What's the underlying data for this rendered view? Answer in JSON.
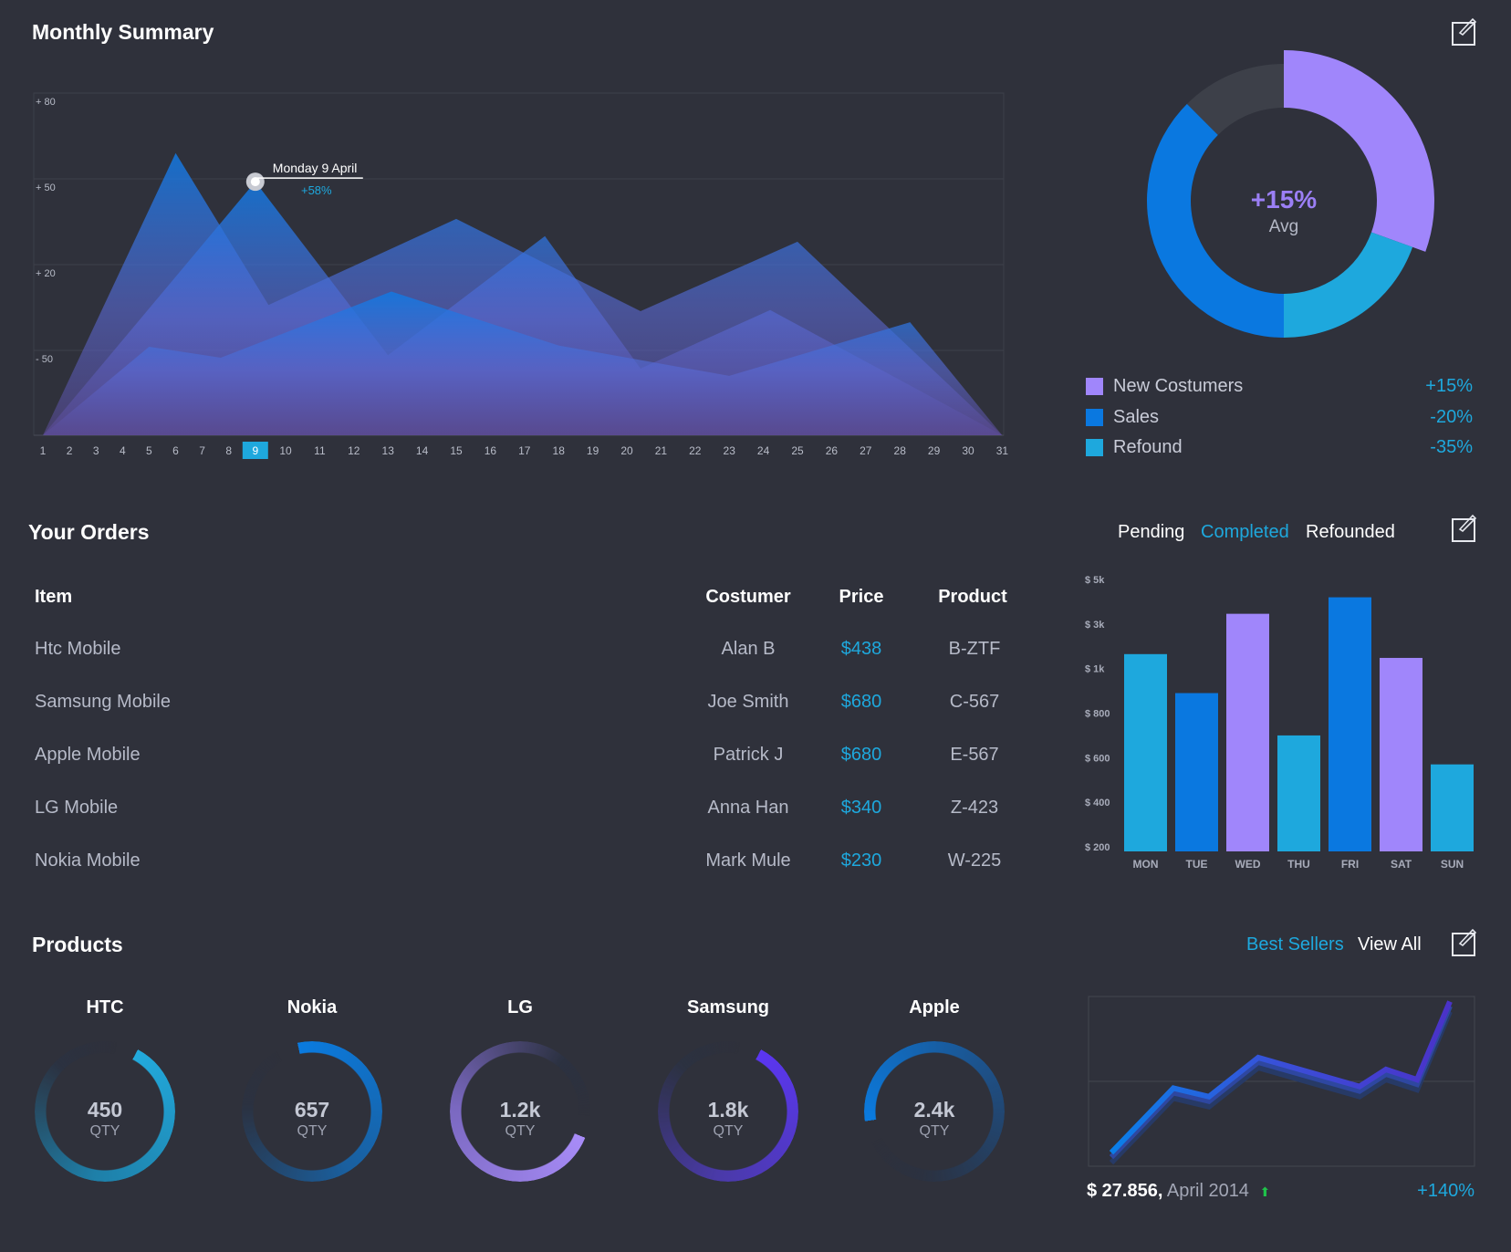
{
  "monthly": {
    "title": "Monthly Summary",
    "tooltip": {
      "label": "Monday 9 April",
      "value": "+58%"
    },
    "highlight_day": 9
  },
  "chart_data": [
    {
      "type": "area",
      "yticks": [
        {
          "label": "+ 80",
          "value": 80
        },
        {
          "label": "+ 50",
          "value": 50
        },
        {
          "label": "+ 20",
          "value": 20
        },
        {
          "label": "- 50",
          "value": -50
        }
      ],
      "ylim": [
        -120,
        80
      ],
      "grid": true,
      "x": [
        1,
        2,
        3,
        4,
        5,
        6,
        7,
        8,
        9,
        10,
        11,
        12,
        13,
        14,
        15,
        16,
        17,
        18,
        19,
        20,
        21,
        22,
        23,
        24,
        25,
        26,
        27,
        28,
        29,
        30,
        31
      ],
      "series": [
        {
          "points": [
            [
              1,
              -120
            ],
            [
              6,
              59
            ],
            [
              9.5,
              -13
            ],
            [
              15,
              36
            ],
            [
              20.4,
              -18
            ],
            [
              25,
              28
            ],
            [
              31,
              -120
            ]
          ]
        },
        {
          "points": [
            [
              1,
              -120
            ],
            [
              9,
              49
            ],
            [
              13,
              -54
            ],
            [
              17.6,
              30
            ],
            [
              20.4,
              -65
            ],
            [
              24.2,
              -17
            ],
            [
              31,
              -120
            ]
          ]
        },
        {
          "points": [
            [
              1,
              -120
            ],
            [
              5,
              -47
            ],
            [
              7.7,
              -56
            ],
            [
              13.1,
              -2
            ],
            [
              18,
              -46
            ],
            [
              23,
              -71
            ],
            [
              28.3,
              -27
            ],
            [
              31,
              -120
            ]
          ]
        }
      ]
    },
    {
      "type": "pie",
      "center_value": "+15%",
      "center_label": "Avg",
      "slices": [
        {
          "name": "New Costumers",
          "share": 0.305,
          "color": "#a086fb"
        },
        {
          "name": "Refound",
          "share": 0.195,
          "color": "#1ea8dd"
        },
        {
          "name": "Sales",
          "share": 0.375,
          "color": "#0a78e0"
        },
        {
          "name": "",
          "share": 0.125,
          "color": "#3d4049"
        }
      ]
    },
    {
      "type": "bar",
      "categories": [
        "MON",
        "TUE",
        "WED",
        "THU",
        "FRI",
        "SAT",
        "SUN"
      ],
      "values": [
        1650,
        890,
        3460,
        700,
        4200,
        1480,
        570
      ],
      "colors": [
        "#1ea8dd",
        "#0a78e0",
        "#a086fb",
        "#1ea8dd",
        "#0a78e0",
        "#a086fb",
        "#1ea8dd"
      ],
      "yticks": [
        {
          "label": "$ 200",
          "value": 200
        },
        {
          "label": "$ 400",
          "value": 400
        },
        {
          "label": "$ 600",
          "value": 600
        },
        {
          "label": "$ 800",
          "value": 800
        },
        {
          "label": "$ 1k",
          "value": 1000
        },
        {
          "label": "$ 3k",
          "value": 3000
        },
        {
          "label": "$ 5k",
          "value": 5000
        }
      ]
    },
    {
      "type": "line",
      "values": [
        8,
        46,
        41,
        64,
        47,
        57,
        51,
        97
      ],
      "ylim": [
        0,
        100
      ],
      "grid": true
    }
  ],
  "legend": [
    {
      "label": "New Costumers",
      "value": "+15%",
      "color": "#a086fb"
    },
    {
      "label": "Sales",
      "value": "-20%",
      "color": "#0a78e0"
    },
    {
      "label": "Refound",
      "value": "-35%",
      "color": "#1ea8dd"
    }
  ],
  "orders": {
    "title": "Your Orders",
    "tabs": [
      {
        "label": "Pending",
        "active": false
      },
      {
        "label": "Completed",
        "active": true
      },
      {
        "label": "Refounded",
        "active": false
      }
    ],
    "columns": {
      "item": "Item",
      "customer": "Costumer",
      "price": "Price",
      "product": "Product"
    },
    "rows": [
      {
        "item": "Htc Mobile",
        "customer": "Alan B",
        "price": "$438",
        "product": "B-ZTF"
      },
      {
        "item": "Samsung Mobile",
        "customer": "Joe Smith",
        "price": "$680",
        "product": "C-567"
      },
      {
        "item": "Apple Mobile",
        "customer": "Patrick J",
        "price": "$680",
        "product": "E-567"
      },
      {
        "item": "LG Mobile",
        "customer": "Anna Han",
        "price": "$340",
        "product": "Z-423"
      },
      {
        "item": "Nokia Mobile",
        "customer": "Mark Mule",
        "price": "$230",
        "product": "W-225"
      }
    ]
  },
  "products": {
    "title": "Products",
    "best_sellers": "Best Sellers",
    "view_all": "View All",
    "items": [
      {
        "name": "HTC",
        "qty": "450",
        "unit": "QTY",
        "color": "#22aadd",
        "mid": "#1e7fa8"
      },
      {
        "name": "Nokia",
        "qty": "657",
        "unit": "QTY",
        "color": "#0a7be0",
        "mid": "#1a5f9e"
      },
      {
        "name": "LG",
        "qty": "1.2k",
        "unit": "QTY",
        "color": "#a88cf8",
        "mid": "#7a68c0"
      },
      {
        "name": "Samsung",
        "qty": "1.8k",
        "unit": "QTY",
        "color": "#5b36f2",
        "mid": "#4a3aa8"
      },
      {
        "name": "Apple",
        "qty": "2.4k",
        "unit": "QTY",
        "color": "#0a7be0",
        "mid": "#1f4d80"
      }
    ],
    "summary": {
      "amount": "$ 27.856,",
      "period": "April 2014",
      "change": "+140%"
    }
  }
}
